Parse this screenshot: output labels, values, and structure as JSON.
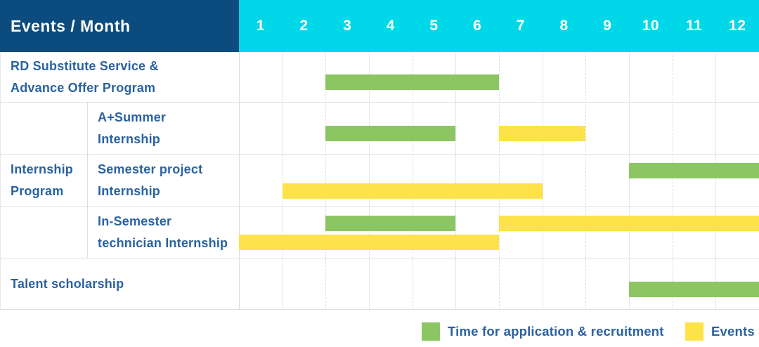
{
  "colors": {
    "navy": "#0b4b7e",
    "cyan": "#00d8ea",
    "green": "#8cc663",
    "yellow": "#fde349",
    "label_blue": "#2a62a0"
  },
  "chart_data": {
    "type": "gantt",
    "title": "Events / Month",
    "x_axis_label": "Month",
    "x_ticks": [
      "1",
      "2",
      "3",
      "4",
      "5",
      "6",
      "7",
      "8",
      "9",
      "10",
      "11",
      "12"
    ],
    "x_range": [
      1,
      12
    ],
    "grid": true,
    "legend_position": "bottom-right",
    "legend": [
      {
        "key": "application",
        "label": "Time for application & recruitment",
        "color": "#8cc663"
      },
      {
        "key": "event",
        "label": "Events",
        "color": "#fde349"
      }
    ],
    "groups": [
      {
        "name": "Internship Program",
        "lines": [
          "Internship",
          "Program"
        ]
      }
    ],
    "rows": [
      {
        "id": "rd-substitute",
        "group": null,
        "label": "RD Substitute Service & Advance Offer Program",
        "label_lines": [
          "RD Substitute Service &",
          "Advance Offer Program"
        ],
        "bars": [
          {
            "kind": "application",
            "start_month": 3,
            "end_month": 6,
            "lane": "center"
          }
        ]
      },
      {
        "id": "a-plus-summer-internship",
        "group": "Internship Program",
        "label": "A+Summer Internship",
        "label_lines": [
          "A+Summer",
          "Internship"
        ],
        "bars": [
          {
            "kind": "application",
            "start_month": 3,
            "end_month": 5,
            "lane": "center"
          },
          {
            "kind": "event",
            "start_month": 7,
            "end_month": 8,
            "lane": "center"
          }
        ]
      },
      {
        "id": "semester-project-internship",
        "group": "Internship Program",
        "label": "Semester project Internship",
        "label_lines": [
          "Semester project",
          "Internship"
        ],
        "bars": [
          {
            "kind": "application",
            "start_month": 10,
            "end_month": 12,
            "lane": "top"
          },
          {
            "kind": "event",
            "start_month": 2,
            "end_month": 7,
            "lane": "bottom"
          }
        ]
      },
      {
        "id": "in-semester-technician-internship",
        "group": "Internship Program",
        "label": "In-Semester technician Internship",
        "label_lines": [
          "In-Semester",
          "technician Internship"
        ],
        "bars": [
          {
            "kind": "application",
            "start_month": 3,
            "end_month": 5,
            "lane": "top"
          },
          {
            "kind": "event",
            "start_month": 7,
            "end_month": 12,
            "lane": "top"
          },
          {
            "kind": "event",
            "start_month": 1,
            "end_month": 6,
            "lane": "bottom"
          }
        ]
      },
      {
        "id": "talent-scholarship",
        "group": null,
        "label": "Talent scholarship",
        "label_lines": [
          "Talent scholarship"
        ],
        "bars": [
          {
            "kind": "application",
            "start_month": 10,
            "end_month": 12,
            "lane": "center"
          }
        ]
      }
    ]
  }
}
